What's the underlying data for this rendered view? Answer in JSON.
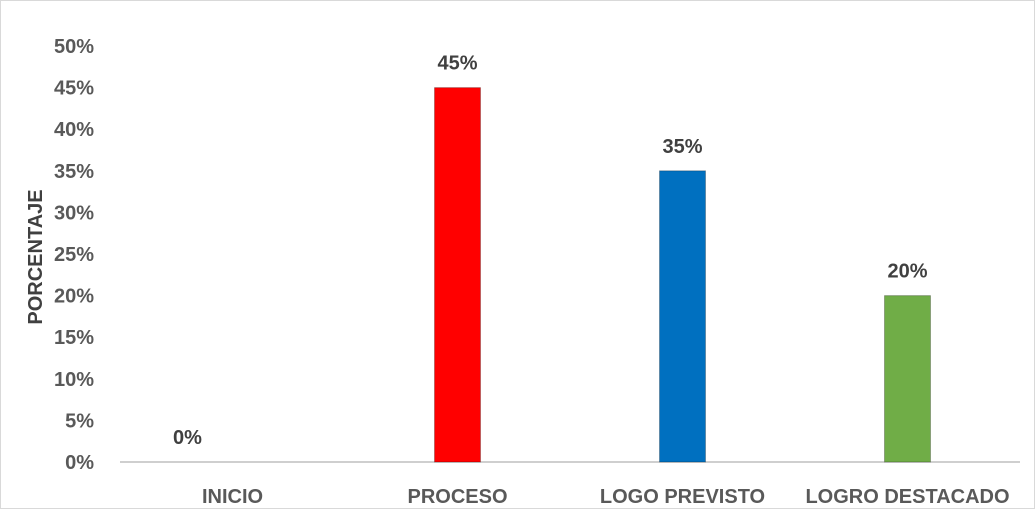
{
  "chart_data": {
    "type": "bar",
    "categories": [
      "INICIO",
      "PROCESO",
      "LOGO PREVISTO",
      "LOGRO DESTACADO"
    ],
    "values": [
      0,
      45,
      35,
      20
    ],
    "data_labels": [
      "0%",
      "45%",
      "35%",
      "20%"
    ],
    "colors": [
      "#7f7f7f",
      "#ff0000",
      "#0070c0",
      "#70ad47"
    ],
    "title": "",
    "xlabel": "",
    "ylabel": "PORCENTAJE",
    "ylim": [
      0,
      50
    ],
    "y_unit": "%",
    "y_ticks": [
      "0%",
      "5%",
      "10%",
      "15%",
      "20%",
      "25%",
      "30%",
      "35%",
      "40%",
      "45%",
      "50%"
    ],
    "grid": false,
    "legend": "none"
  }
}
